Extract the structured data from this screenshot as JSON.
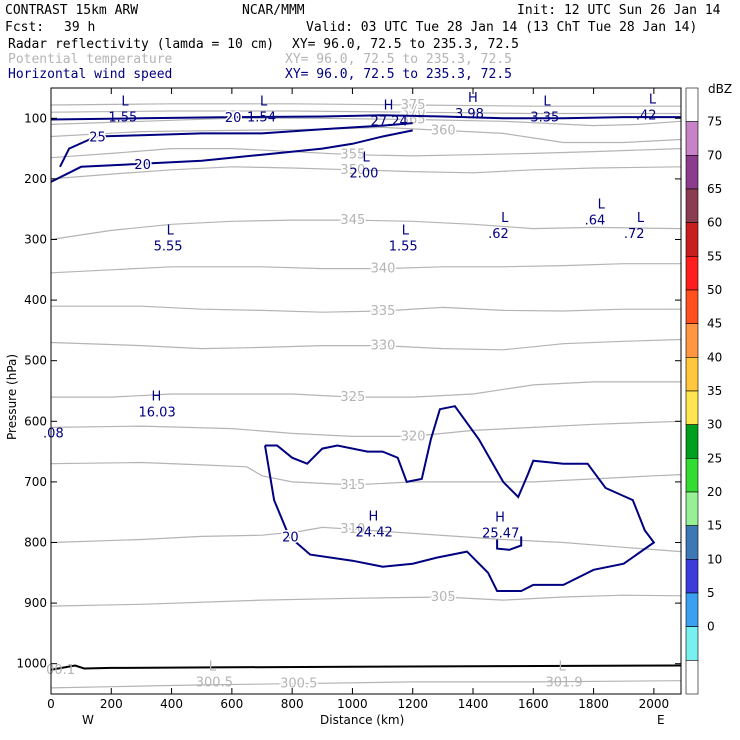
{
  "header": {
    "model": "CONTRAST 15km ARW",
    "org": "NCAR/MMM",
    "init": "Init: 12 UTC Sun 26 Jan 14",
    "fcst_label": "Fcst:",
    "fcst_value": "39 h",
    "valid": "Valid: 03 UTC Tue 28 Jan 14 (13 ChT Tue 28 Jan 14)",
    "fields": [
      {
        "name": "Radar reflectivity (lamda = 10 cm)",
        "xy": "XY=  96.0, 72.5 to 235.3, 72.5",
        "color": "#000000"
      },
      {
        "name": "Potential temperature",
        "xy": "XY=  96.0, 72.5 to 235.3, 72.5",
        "color": "#b4b4b4"
      },
      {
        "name": "Horizontal wind speed",
        "xy": "XY=  96.0, 72.5 to 235.3, 72.5",
        "color": "#000080"
      }
    ]
  },
  "colorbar": {
    "unit": "dBZ",
    "levels": [
      "75",
      "70",
      "65",
      "60",
      "55",
      "50",
      "45",
      "40",
      "35",
      "30",
      "25",
      "20",
      "15",
      "10",
      "5",
      "0"
    ],
    "colors": [
      "#ffffff",
      "#c882c8",
      "#8c3c8c",
      "#8c3c50",
      "#c81e1e",
      "#ff1e1e",
      "#ff501e",
      "#ff9641",
      "#ffc83c",
      "#ffe650",
      "#00a01e",
      "#32dc32",
      "#96f096",
      "#3c78b4",
      "#3c3cdc",
      "#3ca0f0",
      "#78f0f0",
      "#ffffff"
    ]
  },
  "chart_data": {
    "type": "cross-section",
    "title": "CONTRAST 15km ARW vertical cross-section",
    "xlabel": "Distance (km)",
    "ylabel": "Pressure (hPa)",
    "xlim": [
      0,
      2090
    ],
    "ylim": [
      1050,
      50
    ],
    "x_ticks": [
      0,
      200,
      400,
      600,
      800,
      1000,
      1200,
      1400,
      1600,
      1800,
      2000
    ],
    "y_ticks": [
      100,
      200,
      300,
      400,
      500,
      600,
      700,
      800,
      900,
      1000
    ],
    "x_end_labels": {
      "left": "W",
      "right": "E"
    },
    "theta_contours": [
      {
        "label": "305",
        "points": [
          [
            0,
            905
          ],
          [
            300,
            902
          ],
          [
            700,
            895
          ],
          [
            1000,
            892
          ],
          [
            1300,
            890
          ],
          [
            1500,
            895
          ],
          [
            1700,
            890
          ],
          [
            1900,
            887
          ],
          [
            2090,
            888
          ]
        ]
      },
      {
        "label": "310",
        "points": [
          [
            0,
            800
          ],
          [
            300,
            795
          ],
          [
            500,
            790
          ],
          [
            700,
            788
          ],
          [
            820,
            782
          ],
          [
            900,
            775
          ],
          [
            1000,
            778
          ],
          [
            1200,
            785
          ],
          [
            1500,
            795
          ],
          [
            1700,
            800
          ],
          [
            1900,
            808
          ],
          [
            2090,
            815
          ]
        ]
      },
      {
        "label": "315",
        "points": [
          [
            0,
            670
          ],
          [
            300,
            668
          ],
          [
            500,
            672
          ],
          [
            650,
            675
          ],
          [
            700,
            690
          ],
          [
            800,
            700
          ],
          [
            1000,
            705
          ],
          [
            1200,
            700
          ],
          [
            1400,
            700
          ],
          [
            1600,
            700
          ],
          [
            1800,
            695
          ],
          [
            2000,
            690
          ],
          [
            2090,
            688
          ]
        ]
      },
      {
        "label": "320",
        "points": [
          [
            0,
            610
          ],
          [
            300,
            608
          ],
          [
            600,
            612
          ],
          [
            800,
            620
          ],
          [
            1000,
            625
          ],
          [
            1200,
            625
          ],
          [
            1400,
            615
          ],
          [
            1600,
            610
          ],
          [
            1800,
            605
          ],
          [
            2090,
            600
          ]
        ]
      },
      {
        "label": "325",
        "points": [
          [
            0,
            560
          ],
          [
            200,
            560
          ],
          [
            400,
            555
          ],
          [
            600,
            555
          ],
          [
            800,
            555
          ],
          [
            1000,
            560
          ],
          [
            1200,
            560
          ],
          [
            1400,
            555
          ],
          [
            1600,
            540
          ],
          [
            1800,
            535
          ],
          [
            2090,
            535
          ]
        ]
      },
      {
        "label": "330",
        "points": [
          [
            0,
            470
          ],
          [
            300,
            475
          ],
          [
            500,
            480
          ],
          [
            700,
            478
          ],
          [
            900,
            475
          ],
          [
            1100,
            475
          ],
          [
            1300,
            480
          ],
          [
            1500,
            482
          ],
          [
            1700,
            472
          ],
          [
            1900,
            468
          ],
          [
            2090,
            465
          ]
        ]
      },
      {
        "label": "335",
        "points": [
          [
            0,
            410
          ],
          [
            300,
            410
          ],
          [
            500,
            415
          ],
          [
            700,
            417
          ],
          [
            900,
            420
          ],
          [
            1100,
            418
          ],
          [
            1300,
            412
          ],
          [
            1500,
            417
          ],
          [
            1700,
            418
          ],
          [
            1900,
            415
          ],
          [
            2090,
            415
          ]
        ]
      },
      {
        "label": "340",
        "points": [
          [
            0,
            355
          ],
          [
            200,
            350
          ],
          [
            400,
            345
          ],
          [
            700,
            345
          ],
          [
            900,
            348
          ],
          [
            1100,
            348
          ],
          [
            1300,
            345
          ],
          [
            1500,
            345
          ],
          [
            1700,
            343
          ],
          [
            1900,
            340
          ],
          [
            2090,
            340
          ]
        ]
      },
      {
        "label": "345",
        "points": [
          [
            0,
            300
          ],
          [
            200,
            285
          ],
          [
            400,
            275
          ],
          [
            600,
            270
          ],
          [
            800,
            268
          ],
          [
            1000,
            268
          ],
          [
            1200,
            270
          ],
          [
            1400,
            275
          ],
          [
            1600,
            282
          ],
          [
            1800,
            280
          ],
          [
            2090,
            282
          ]
        ]
      },
      {
        "label": "350",
        "points": [
          [
            0,
            200
          ],
          [
            200,
            192
          ],
          [
            400,
            185
          ],
          [
            600,
            180
          ],
          [
            800,
            182
          ],
          [
            1000,
            185
          ],
          [
            1200,
            188
          ],
          [
            1400,
            190
          ],
          [
            1600,
            185
          ],
          [
            1800,
            182
          ],
          [
            2090,
            180
          ]
        ]
      },
      {
        "label": "355",
        "points": [
          [
            0,
            165
          ],
          [
            200,
            158
          ],
          [
            400,
            150
          ],
          [
            600,
            150
          ],
          [
            800,
            155
          ],
          [
            1000,
            160
          ],
          [
            1200,
            162
          ],
          [
            1400,
            160
          ],
          [
            1600,
            158
          ],
          [
            1800,
            155
          ],
          [
            2090,
            150
          ]
        ]
      },
      {
        "label": "360",
        "points": [
          [
            0,
            130
          ],
          [
            300,
            122
          ],
          [
            600,
            120
          ],
          [
            900,
            118
          ],
          [
            1100,
            115
          ],
          [
            1300,
            120
          ],
          [
            1500,
            125
          ],
          [
            1700,
            140
          ],
          [
            1900,
            140
          ],
          [
            2090,
            135
          ]
        ]
      },
      {
        "label": "365",
        "points": [
          [
            0,
            110
          ],
          [
            300,
            105
          ],
          [
            600,
            100
          ],
          [
            900,
            100
          ],
          [
            1200,
            102
          ],
          [
            1500,
            105
          ],
          [
            1800,
            112
          ],
          [
            1950,
            110
          ],
          [
            2090,
            105
          ]
        ]
      },
      {
        "label": "370",
        "points": [
          [
            0,
            90
          ],
          [
            400,
            88
          ],
          [
            800,
            88
          ],
          [
            1200,
            90
          ],
          [
            1600,
            92
          ],
          [
            2090,
            92
          ]
        ]
      },
      {
        "label": "375",
        "points": [
          [
            0,
            78
          ],
          [
            400,
            76
          ],
          [
            800,
            76
          ],
          [
            1200,
            78
          ],
          [
            1600,
            80
          ],
          [
            2090,
            80
          ]
        ]
      },
      {
        "label": "300.5",
        "points": [
          [
            0,
            1040
          ],
          [
            200,
            1038
          ],
          [
            500,
            1035
          ],
          [
            800,
            1033
          ],
          [
            1200,
            1030
          ],
          [
            1600,
            1030
          ],
          [
            2090,
            1028
          ]
        ]
      }
    ],
    "wind_contours": [
      {
        "label": "20",
        "points": [
          [
            0,
            102
          ],
          [
            300,
            100
          ],
          [
            600,
            98
          ],
          [
            900,
            97
          ],
          [
            1100,
            95
          ],
          [
            1300,
            97
          ],
          [
            1500,
            100
          ],
          [
            1700,
            100
          ],
          [
            1900,
            98
          ],
          [
            2090,
            98
          ]
        ]
      },
      {
        "label": "25",
        "points": [
          [
            30,
            180
          ],
          [
            60,
            150
          ],
          [
            150,
            130
          ],
          [
            300,
            128
          ],
          [
            500,
            125
          ],
          [
            700,
            125
          ],
          [
            900,
            118
          ],
          [
            1100,
            112
          ],
          [
            1200,
            108
          ]
        ]
      },
      {
        "label": "20",
        "points": [
          [
            0,
            205
          ],
          [
            100,
            180
          ],
          [
            300,
            175
          ],
          [
            500,
            170
          ],
          [
            700,
            160
          ],
          [
            900,
            150
          ],
          [
            1000,
            142
          ],
          [
            1100,
            130
          ],
          [
            1200,
            120
          ]
        ]
      },
      {
        "label": "20",
        "points": [
          [
            710,
            640
          ],
          [
            740,
            730
          ],
          [
            790,
            790
          ],
          [
            860,
            820
          ],
          [
            1000,
            830
          ],
          [
            1100,
            840
          ],
          [
            1200,
            835
          ],
          [
            1280,
            825
          ],
          [
            1380,
            815
          ],
          [
            1450,
            850
          ],
          [
            1480,
            880
          ],
          [
            1560,
            880
          ],
          [
            1600,
            870
          ],
          [
            1700,
            870
          ],
          [
            1800,
            845
          ],
          [
            1900,
            835
          ],
          [
            2000,
            800
          ],
          [
            1970,
            780
          ],
          [
            1930,
            730
          ],
          [
            1840,
            710
          ],
          [
            1780,
            670
          ],
          [
            1700,
            670
          ],
          [
            1600,
            665
          ],
          [
            1580,
            690
          ],
          [
            1550,
            725
          ],
          [
            1500,
            700
          ],
          [
            1420,
            630
          ],
          [
            1340,
            575
          ],
          [
            1290,
            580
          ],
          [
            1260,
            630
          ],
          [
            1230,
            695
          ],
          [
            1180,
            700
          ],
          [
            1150,
            660
          ],
          [
            1100,
            650
          ],
          [
            1050,
            650
          ],
          [
            950,
            640
          ],
          [
            900,
            645
          ],
          [
            850,
            670
          ],
          [
            800,
            660
          ],
          [
            750,
            640
          ],
          [
            710,
            640
          ]
        ]
      },
      {
        "label": "",
        "points": [
          [
            1480,
            795
          ],
          [
            1480,
            810
          ],
          [
            1520,
            812
          ],
          [
            1560,
            805
          ],
          [
            1560,
            790
          ]
        ]
      }
    ],
    "marks": [
      {
        "type": "L",
        "value": "1.55",
        "x": 250,
        "y": 95
      },
      {
        "type": "L",
        "value": "1.54",
        "x": 710,
        "y": 95
      },
      {
        "type": "H",
        "value": "27.24",
        "x": 1120,
        "y": 102
      },
      {
        "type": "H",
        "value": "3.98",
        "x": 1400,
        "y": 90
      },
      {
        "type": "L",
        "value": "3.35",
        "x": 1650,
        "y": 95
      },
      {
        "type": "L",
        "value": ".42",
        "x": 2000,
        "y": 92
      },
      {
        "type": "L",
        "value": "2.00",
        "x": 1050,
        "y": 188
      },
      {
        "type": "L",
        "value": "5.55",
        "x": 400,
        "y": 308
      },
      {
        "type": "L",
        "value": "1.55",
        "x": 1180,
        "y": 308
      },
      {
        "type": "L",
        "value": ".62",
        "x": 1510,
        "y": 288
      },
      {
        "type": "L",
        "value": ".64",
        "x": 1830,
        "y": 265
      },
      {
        "type": "L",
        "value": ".72",
        "x": 1960,
        "y": 288
      },
      {
        "type": "H",
        "value": "16.03",
        "x": 350,
        "y": 582
      },
      {
        "type": "H",
        "value": "24.42",
        "x": 1070,
        "y": 780
      },
      {
        "type": "H",
        "value": "25.47",
        "x": 1490,
        "y": 782
      },
      {
        "type": "L",
        "value": "300.5",
        "x": 540,
        "y": 1028
      },
      {
        "type": "L",
        "value": "301.9",
        "x": 1700,
        "y": 1028
      }
    ],
    "edge_labels": [
      {
        "text": ".08",
        "x": 40,
        "y": 620
      },
      {
        "text": "00.1",
        "x": 50,
        "y": 1010
      }
    ],
    "terrain": [
      [
        0,
        1010
      ],
      [
        80,
        1003
      ],
      [
        110,
        1008
      ],
      [
        200,
        1007
      ],
      [
        600,
        1006
      ],
      [
        1000,
        1005
      ],
      [
        1500,
        1004
      ],
      [
        2090,
        1003
      ]
    ]
  }
}
